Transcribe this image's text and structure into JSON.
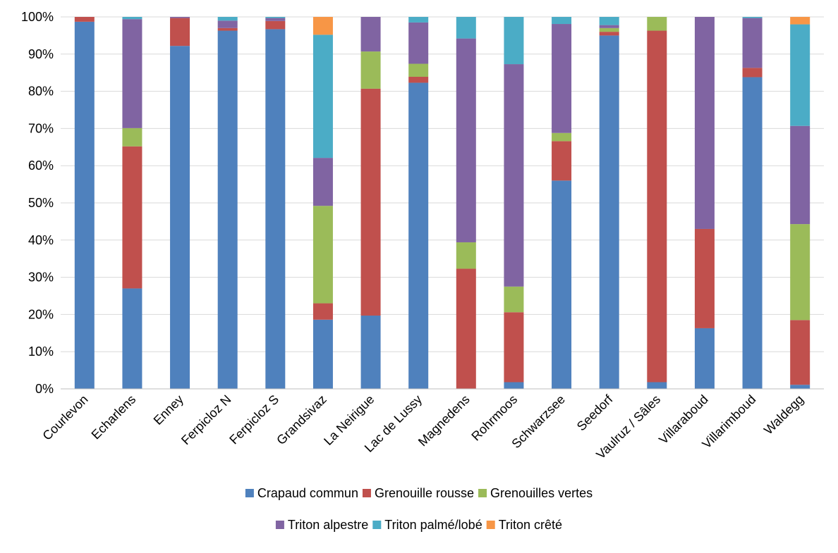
{
  "chart_data": {
    "type": "bar",
    "stacked": true,
    "percent": true,
    "title": "",
    "xlabel": "",
    "ylabel": "",
    "ylim": [
      0,
      100
    ],
    "ytick_step": 10,
    "y_tick_labels": [
      "0%",
      "10%",
      "20%",
      "30%",
      "40%",
      "50%",
      "60%",
      "70%",
      "80%",
      "90%",
      "100%"
    ],
    "grid": true,
    "legend_position": "bottom",
    "categories": [
      "Courlevon",
      "Echarlens",
      "Enney",
      "Ferpicloz N",
      "Ferpicloz S",
      "Grandsivaz",
      "La Neirigue",
      "Lac de Lussy",
      "Magnedens",
      "Rohrmoos",
      "Schwarzsee",
      "Seedorf",
      "Vaulruz / Sâles",
      "Villaraboud",
      "Villarimboud",
      "Waldegg"
    ],
    "series": [
      {
        "name": "Crapaud commun",
        "color": "#4F81BD",
        "values": [
          98.7,
          27.0,
          92.2,
          96.3,
          96.7,
          18.6,
          19.7,
          82.3,
          0.0,
          1.8,
          56.0,
          95.0,
          1.8,
          16.3,
          83.8,
          1.1
        ]
      },
      {
        "name": "Grenouille rousse",
        "color": "#C0504D",
        "values": [
          1.3,
          38.2,
          7.5,
          0.7,
          2.2,
          4.4,
          61.0,
          1.6,
          32.3,
          18.8,
          10.6,
          1.0,
          94.5,
          26.7,
          2.5,
          17.4
        ]
      },
      {
        "name": "Grenouilles vertes",
        "color": "#9BBB59",
        "values": [
          0.0,
          4.9,
          0.0,
          0.0,
          0.0,
          26.2,
          10.0,
          3.5,
          7.1,
          6.9,
          2.2,
          1.0,
          3.7,
          0.0,
          0.0,
          25.8
        ]
      },
      {
        "name": "Triton alpestre",
        "color": "#8064A2",
        "values": [
          0.0,
          29.3,
          0.3,
          2.0,
          0.8,
          12.9,
          9.3,
          11.1,
          54.8,
          59.8,
          29.3,
          0.8,
          0.0,
          57.0,
          13.4,
          26.4
        ]
      },
      {
        "name": "Triton palmé/lobé",
        "color": "#4BACC6",
        "values": [
          0.0,
          0.6,
          0.0,
          1.0,
          0.3,
          33.1,
          0.0,
          1.5,
          5.8,
          12.7,
          1.9,
          2.2,
          0.0,
          0.0,
          0.3,
          27.3
        ]
      },
      {
        "name": "Triton crêté",
        "color": "#F79646",
        "values": [
          0.0,
          0.0,
          0.0,
          0.0,
          0.0,
          4.8,
          0.0,
          0.0,
          0.0,
          0.0,
          0.0,
          0.0,
          0.0,
          0.0,
          0.0,
          2.0
        ]
      }
    ],
    "legend_rows": [
      [
        0,
        1,
        2
      ],
      [
        3,
        4,
        5
      ]
    ],
    "colors": {
      "grid": "#D9D9D9",
      "axis": "#BFBFBF",
      "text": "#000000"
    }
  }
}
